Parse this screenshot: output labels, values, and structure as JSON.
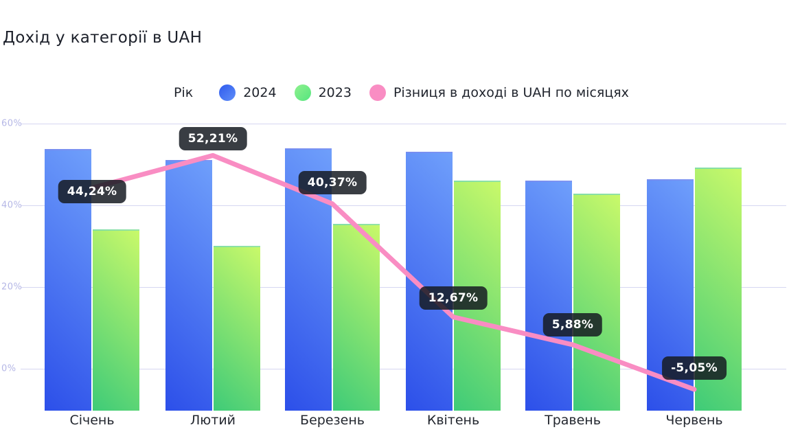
{
  "title": "Дохід у категорії в UAH",
  "legend": {
    "label": "Рік",
    "items": [
      {
        "label": "2024",
        "swatch": "blue-gradient-dot"
      },
      {
        "label": "2023",
        "swatch": "green-gradient-dot"
      },
      {
        "label": "Різниця в доході в UAH по місяцях",
        "swatch": "pink-dot"
      }
    ]
  },
  "colors": {
    "bar_2024_gradient_start": "#2c4fe9",
    "bar_2024_gradient_end": "#6f9ffb",
    "bar_2023_gradient_start": "#3ecb78",
    "bar_2023_gradient_end": "#c9f96a",
    "legend_dot_2024_start": "#2f5bee",
    "legend_dot_2024_end": "#5f8ef8",
    "legend_dot_2023_start": "#8ff18e",
    "legend_dot_2023_end": "#55e57e",
    "line": "#f98dc3",
    "chip_background": "rgba(22,27,34,0.85)",
    "grid": "#d5d6f1",
    "y_tick_text": "#b5b7e6"
  },
  "chart_data": {
    "type": "combo-bar-line",
    "title": "Дохід у категорії в UAH",
    "categories": [
      "Січень",
      "Лютий",
      "Березень",
      "Квітень",
      "Травень",
      "Червень"
    ],
    "left_axis": {
      "tick_labels": [
        "60%",
        "40%",
        "20%",
        "0%"
      ],
      "tick_values": [
        60,
        40,
        20,
        0
      ],
      "applies_to": "line-series-only"
    },
    "bar_value_axis": "hidden (UAH revenue, no ticks shown)",
    "bar_baseline_in_pct_axis_units": -10.25,
    "series": [
      {
        "name": "2024",
        "type": "bar",
        "top_in_pct_axis_units": [
          53.8,
          51.1,
          53.9,
          53.1,
          46.1,
          46.4
        ]
      },
      {
        "name": "2023",
        "type": "bar",
        "top_in_pct_axis_units": [
          34.1,
          30.1,
          35.5,
          46.1,
          42.9,
          49.2
        ]
      },
      {
        "name": "Різниця в доході в UAH по місяцях",
        "type": "line",
        "values": [
          44.24,
          52.21,
          40.37,
          12.67,
          5.88,
          -5.05
        ],
        "point_labels": [
          "44,24%",
          "52,21%",
          "40,37%",
          "12,67%",
          "5,88%",
          "-5,05%"
        ]
      }
    ],
    "legend_position": "top",
    "grid": "horizontal-only"
  }
}
